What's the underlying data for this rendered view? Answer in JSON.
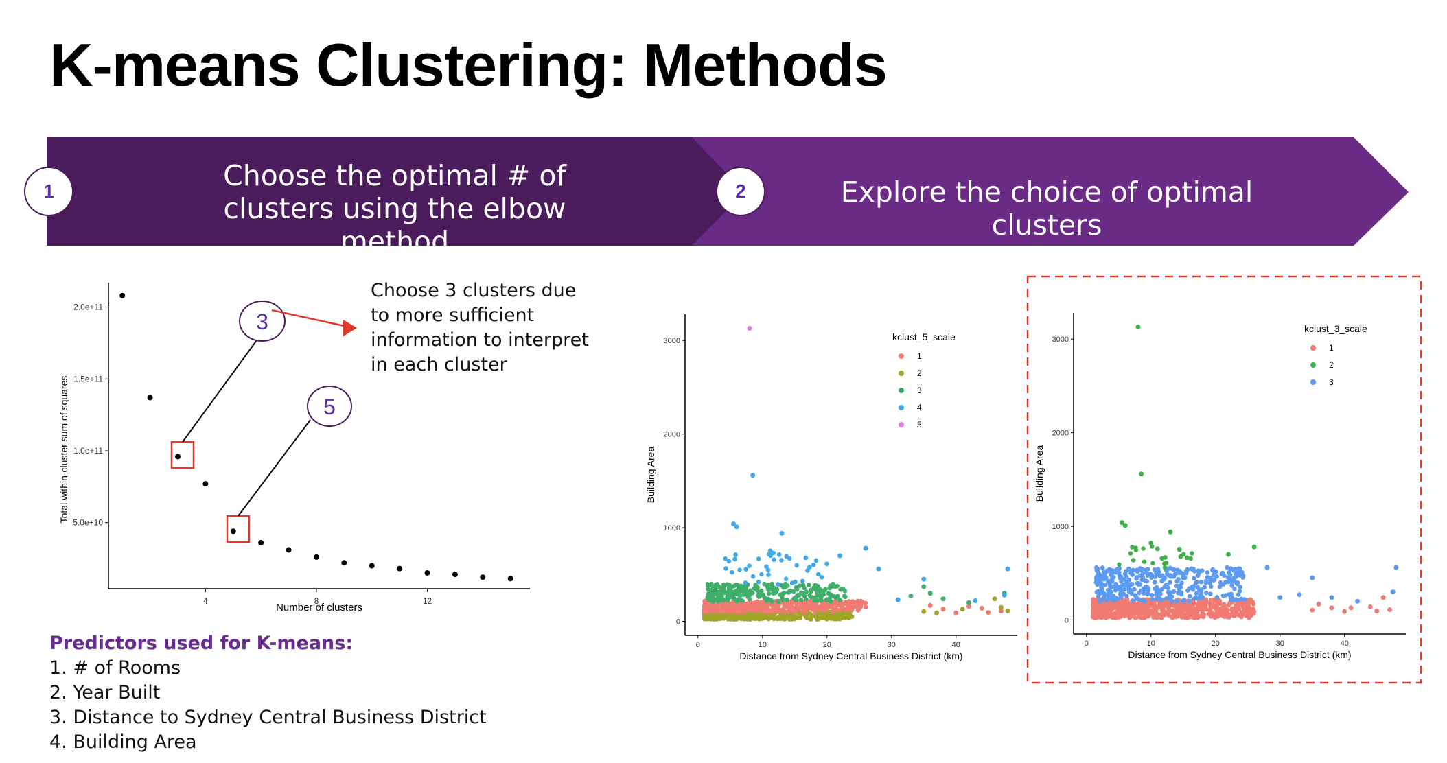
{
  "slide": {
    "title": "K-means Clustering: Methods",
    "accent_dark": "#4b1c5c",
    "accent_light": "#6a2b85"
  },
  "steps": [
    {
      "number": "1",
      "text": "Choose the optimal # of clusters using the elbow method"
    },
    {
      "number": "2",
      "text": "Explore the choice of optimal clusters"
    }
  ],
  "elbow_note": "Choose 3 clusters due to more sufficient information to interpret in each cluster",
  "callouts": {
    "three": "3",
    "five": "5"
  },
  "predictors": {
    "heading": "Predictors used for K-means:",
    "items": [
      "1. # of Rooms",
      "2. Year Built",
      "3. Distance to Sydney Central Business District",
      "4. Building Area"
    ]
  },
  "chart_data": [
    {
      "type": "scatter",
      "xlabel": "Number of clusters",
      "ylabel": "Total within-cluster sum of squares",
      "xticks": [
        4,
        8,
        12
      ],
      "yticks": [
        "5.0e+10",
        "1.0e+11",
        "1.5e+11",
        "2.0e+11"
      ],
      "ytick_values": [
        50000000000.0,
        100000000000.0,
        150000000000.0,
        200000000000.0
      ],
      "xlim": [
        0.5,
        15.7
      ],
      "ylim": [
        4000000000.0,
        217000000000.0
      ],
      "x": [
        1,
        2,
        3,
        4,
        5,
        6,
        7,
        8,
        9,
        10,
        11,
        12,
        13,
        14,
        15
      ],
      "y": [
        208000000000.0,
        137000000000.0,
        96000000000.0,
        77000000000.0,
        44000000000.0,
        36000000000.0,
        31000000000.0,
        26000000000.0,
        22000000000.0,
        20000000000.0,
        18000000000.0,
        15000000000.0,
        14000000000.0,
        12000000000.0,
        11000000000.0
      ],
      "highlighted_x": [
        3,
        5
      ],
      "grid": false
    },
    {
      "type": "scatter",
      "xlabel": "Distance from Sydney Central Business District (km)",
      "ylabel": "Building Area",
      "xticks": [
        0,
        10,
        20,
        30,
        40
      ],
      "yticks": [
        0,
        1000,
        2000,
        3000
      ],
      "xlim": [
        -2,
        49.5
      ],
      "ylim": [
        -150,
        3280
      ],
      "legend_title": "kclust_5_scale",
      "legend_position": "top-right",
      "series": [
        {
          "name": "1",
          "color": "#f07b72",
          "points": [
            [
              36,
              170
            ],
            [
              44,
              140
            ],
            [
              45,
              95
            ],
            [
              47,
              110
            ],
            [
              38,
              130
            ],
            [
              40,
              90
            ],
            [
              42,
              160
            ]
          ]
        },
        {
          "name": "2",
          "color": "#a3a52a",
          "points": [
            [
              46,
              240
            ],
            [
              47,
              150
            ],
            [
              48,
              110
            ],
            [
              41,
              130
            ],
            [
              35,
              105
            ],
            [
              37,
              90
            ]
          ]
        },
        {
          "name": "3",
          "color": "#3fae6a",
          "points": [
            [
              47.5,
              300
            ],
            [
              35,
              370
            ],
            [
              33,
              270
            ],
            [
              38,
              240
            ],
            [
              42,
              200
            ],
            [
              36,
              300
            ]
          ]
        },
        {
          "name": "4",
          "color": "#3fa9e6",
          "points": [
            [
              8.5,
              1560
            ],
            [
              5.5,
              1040
            ],
            [
              6,
              1010
            ],
            [
              13,
              940
            ],
            [
              26,
              780
            ],
            [
              22,
              700
            ],
            [
              28,
              560
            ],
            [
              35,
              450
            ],
            [
              48,
              560
            ],
            [
              47.5,
              280
            ],
            [
              43,
              220
            ],
            [
              31,
              230
            ]
          ]
        },
        {
          "name": "5",
          "color": "#e07be0",
          "points": [
            [
              8,
              3130
            ]
          ]
        }
      ],
      "grid": false
    },
    {
      "type": "scatter",
      "xlabel": "Distance from Sydney Central Business District (km)",
      "ylabel": "Building Area",
      "xticks": [
        0,
        10,
        20,
        30,
        40
      ],
      "yticks": [
        0,
        1000,
        2000,
        3000
      ],
      "xlim": [
        -2,
        49.5
      ],
      "ylim": [
        -150,
        3280
      ],
      "legend_title": "kclust_3_scale",
      "legend_position": "top-right",
      "series": [
        {
          "name": "1",
          "color": "#f07b72",
          "points": [
            [
              36,
              170
            ],
            [
              44,
              140
            ],
            [
              45,
              95
            ],
            [
              47,
              110
            ],
            [
              38,
              130
            ],
            [
              40,
              90
            ],
            [
              46,
              240
            ],
            [
              41,
              130
            ],
            [
              35,
              105
            ]
          ]
        },
        {
          "name": "2",
          "color": "#3fb04a",
          "points": [
            [
              8,
              3130
            ],
            [
              8.5,
              1560
            ],
            [
              5.5,
              1040
            ],
            [
              6,
              1010
            ],
            [
              13,
              940
            ],
            [
              26,
              780
            ],
            [
              22,
              700
            ],
            [
              10,
              820
            ],
            [
              11,
              760
            ]
          ]
        },
        {
          "name": "3",
          "color": "#5c9af0",
          "points": [
            [
              28,
              560
            ],
            [
              35,
              450
            ],
            [
              48,
              560
            ],
            [
              47.5,
              300
            ],
            [
              42,
              200
            ],
            [
              33,
              270
            ],
            [
              30,
              240
            ],
            [
              38,
              240
            ]
          ]
        }
      ],
      "grid": false
    }
  ]
}
